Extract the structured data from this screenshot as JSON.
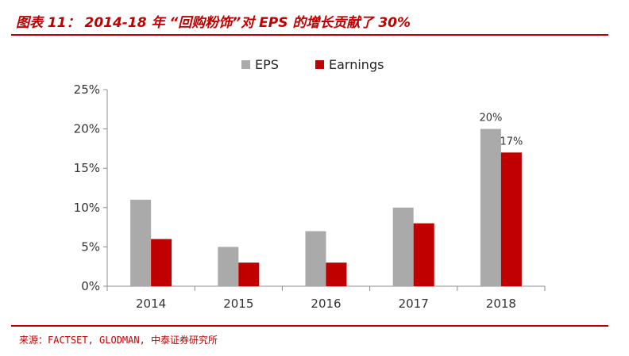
{
  "header": {
    "figure_title": "图表 11： 2014-18 年 “回购粉饰”对 EPS 的增长贡献了 30%",
    "source_note": "来源：FACTSET, GLODMAN, 中泰证券研究所",
    "accent_color": "#c00000"
  },
  "chart_data": {
    "type": "bar",
    "categories": [
      "2014",
      "2015",
      "2016",
      "2017",
      "2018"
    ],
    "series": [
      {
        "name": "EPS",
        "color": "#aaaaaa",
        "values": [
          11,
          5,
          7,
          10,
          20
        ]
      },
      {
        "name": "Earnings",
        "color": "#c00000",
        "values": [
          6,
          3,
          3,
          8,
          17
        ]
      }
    ],
    "ylim": [
      0,
      25
    ],
    "yticks": [
      0,
      5,
      10,
      15,
      20,
      25
    ],
    "ytick_labels": [
      "0%",
      "5%",
      "10%",
      "15%",
      "20%",
      "25%"
    ],
    "legend": "top-center",
    "grid": false,
    "data_labels": [
      {
        "series": 0,
        "category": 4,
        "text": "20%"
      },
      {
        "series": 1,
        "category": 4,
        "text": "17%"
      }
    ]
  }
}
